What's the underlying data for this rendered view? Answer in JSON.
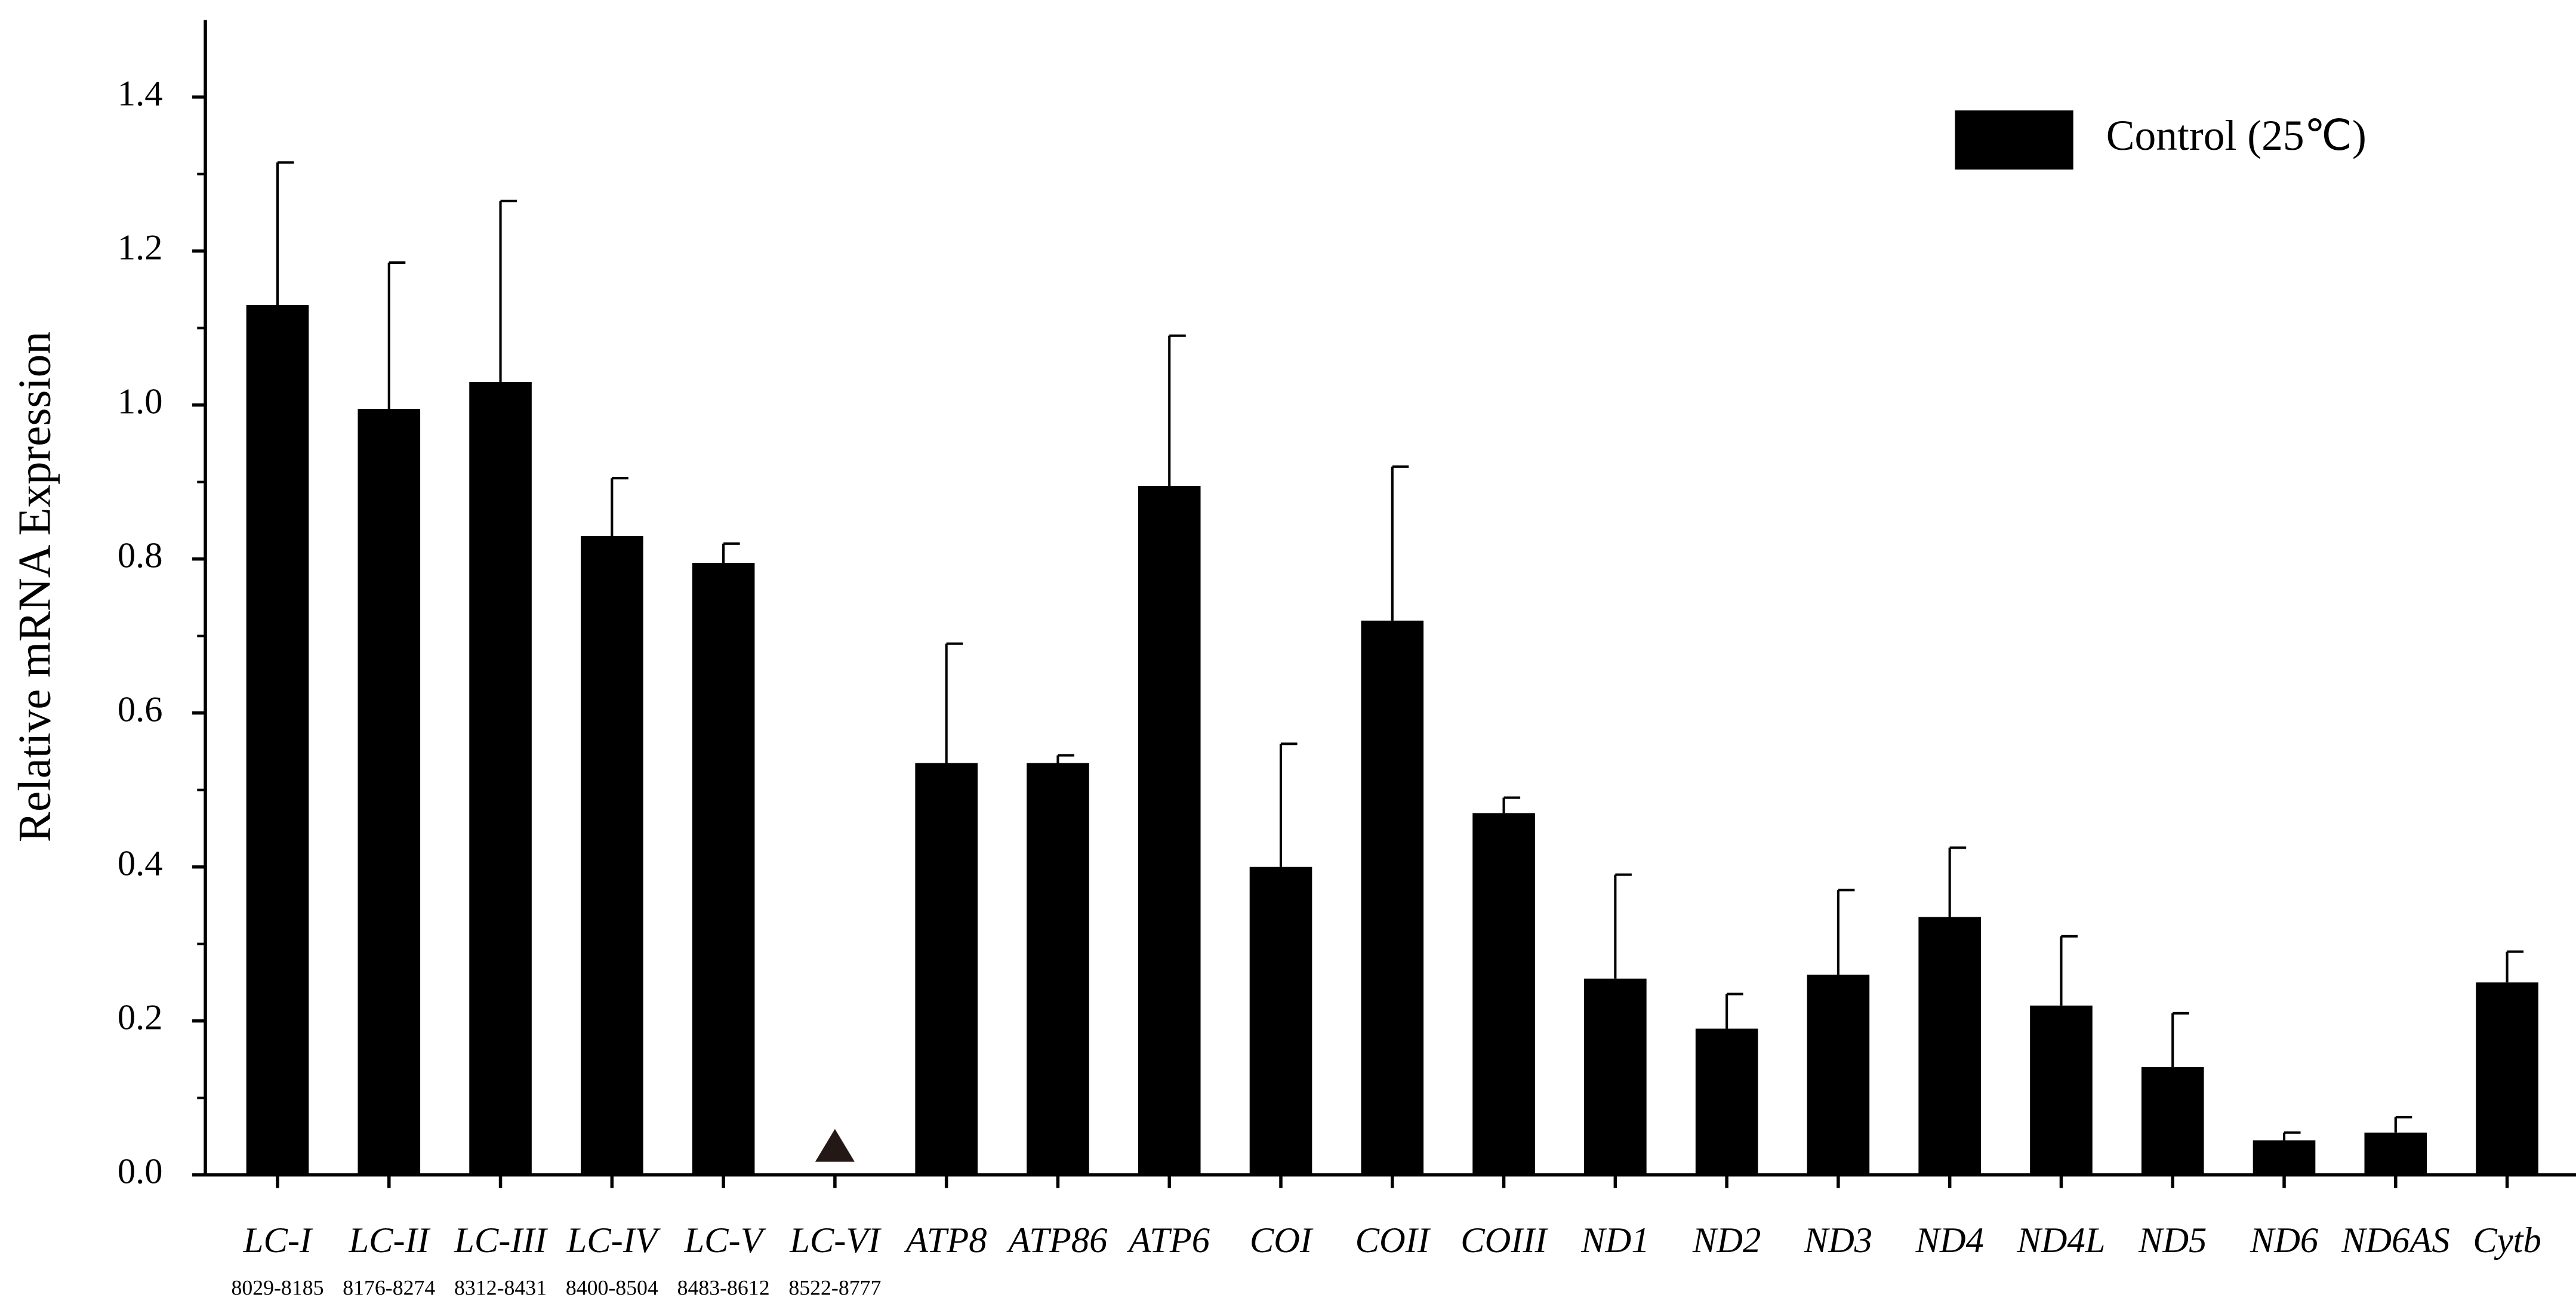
{
  "chart_data": {
    "type": "bar",
    "y_label": "Relative mRNA Expression",
    "categories": [
      "LC-I",
      "LC-II",
      "LC-III",
      "LC-IV",
      "LC-V",
      "LC-VI",
      "ATP8",
      "ATP86",
      "ATP6",
      "COI",
      "COII",
      "COIII",
      "ND1",
      "ND2",
      "ND3",
      "ND4",
      "ND4L",
      "ND5",
      "ND6",
      "ND6AS",
      "Cytb"
    ],
    "category_sublabels": [
      "8029-8185",
      "8176-8274",
      "8312-8431",
      "8400-8504",
      "8483-8612",
      "8522-8777",
      null,
      null,
      null,
      null,
      null,
      null,
      null,
      null,
      null,
      null,
      null,
      null,
      null,
      null,
      null
    ],
    "series": [
      {
        "name": "Control (25℃)",
        "color": "#000000",
        "values": [
          1.13,
          0.995,
          1.03,
          0.83,
          0.795,
          null,
          0.535,
          0.535,
          0.895,
          0.4,
          0.72,
          0.47,
          0.255,
          0.19,
          0.26,
          0.335,
          0.22,
          0.14,
          0.045,
          0.055,
          0.25
        ],
        "errors": [
          0.185,
          0.19,
          0.235,
          0.075,
          0.025,
          null,
          0.155,
          0.01,
          0.195,
          0.16,
          0.2,
          0.02,
          0.135,
          0.045,
          0.11,
          0.09,
          0.09,
          0.07,
          0.01,
          0.02,
          0.04
        ]
      }
    ],
    "ylim": [
      0,
      1.5
    ],
    "yticks": [
      {
        "value": 0,
        "label": "0.0"
      },
      0.2,
      0.4,
      0.6,
      0.8,
      {
        "value": 1,
        "label": "1.0"
      },
      1.2,
      1.4
    ],
    "legend_position": "upper right"
  }
}
